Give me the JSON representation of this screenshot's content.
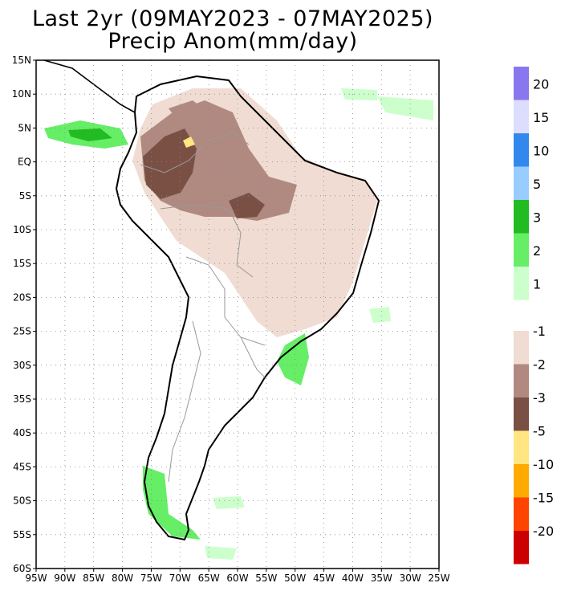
{
  "title_line1": "Last 2yr (09MAY2023 - 07MAY2025)",
  "title_line2": "Precip Anom(mm/day)",
  "lat_labels": [
    "15N",
    "10N",
    "5N",
    "EQ",
    "5S",
    "10S",
    "15S",
    "20S",
    "25S",
    "30S",
    "35S",
    "40S",
    "45S",
    "50S",
    "55S",
    "60S"
  ],
  "lon_labels": [
    "95W",
    "90W",
    "85W",
    "80W",
    "75W",
    "70W",
    "65W",
    "60W",
    "55W",
    "50W",
    "45W",
    "40W",
    "35W",
    "30W",
    "25W"
  ],
  "colorbar_positive": {
    "colors": [
      "#ccffcc",
      "#66ee66",
      "#22bb22",
      "#99ccff",
      "#3388ee",
      "#ddddff",
      "#8877ee"
    ],
    "labels": [
      "1",
      "2",
      "3",
      "5",
      "10",
      "15",
      "20"
    ]
  },
  "colorbar_negative": {
    "colors": [
      "#f0dcd2",
      "#b08a80",
      "#7a5045",
      "#ffe680",
      "#ffaa00",
      "#ff4400",
      "#cc0000"
    ],
    "labels": [
      "-1",
      "-2",
      "-3",
      "-5",
      "-10",
      "-15",
      "-20"
    ]
  }
}
